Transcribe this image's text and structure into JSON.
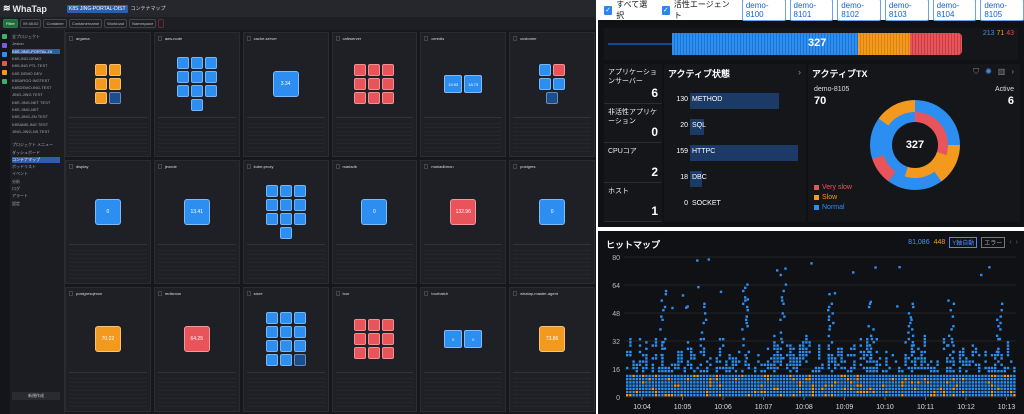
{
  "left": {
    "logo": "WhaTap",
    "project": "K8S JING-PORTAL-DIST",
    "page": "コンテナマップ",
    "toolbar": [
      "Filter",
      "09:48:02",
      "Container",
      "Containername",
      "Workload",
      "Namespace"
    ],
    "side_items": [
      "全プロジェクト",
      "Jeston",
      "K8S JING-PORTAL-DI",
      "K8S-ING-DEMO",
      "K8S-ING PTL TEST",
      "K8S DEMO DEV",
      "K8SARGO INGTEST",
      "K8SDEMO-ING-TEST",
      "JING-JING TEST",
      "K8S JING-NET TEST",
      "K8S JING-NET",
      "K8S-JING-ZN TEST",
      "K8SAMD-ING TEST",
      "JING-JING-NS TEST",
      "プロジェクト メニュー",
      "ダッシュボード",
      "コンテナマップ",
      "ポッドリスト",
      "イベント",
      "分析",
      "ログ",
      "アラート",
      "設定"
    ],
    "side_bottom": "新規作成",
    "cards": [
      {
        "name": "argama",
        "kind": "mixed"
      },
      {
        "name": "aws-node",
        "kind": "blues"
      },
      {
        "name": "cache-server",
        "kind": "single",
        "value": "3.34"
      },
      {
        "name": "cafeserver",
        "kind": "reds"
      },
      {
        "name": "ceredis",
        "kind": "pair",
        "values": [
          "19.93",
          "18.73"
        ]
      },
      {
        "name": "customer",
        "kind": "mixblue"
      },
      {
        "name": "display",
        "kind": "single",
        "value": "0"
      },
      {
        "name": "jeonde",
        "kind": "single",
        "value": "13.41"
      },
      {
        "name": "kube-proxy",
        "kind": "blues"
      },
      {
        "name": "mariadb",
        "kind": "single",
        "value": "0"
      },
      {
        "name": "mariadbmon",
        "kind": "singlered",
        "value": "132.96"
      },
      {
        "name": "postgres",
        "kind": "single",
        "value": "0"
      },
      {
        "name": "postgresqlmon",
        "kind": "singleorange",
        "value": "70.22"
      },
      {
        "name": "redismon",
        "kind": "singlered",
        "value": "64.25"
      },
      {
        "name": "store",
        "kind": "blues2"
      },
      {
        "name": "tour",
        "kind": "reds"
      },
      {
        "name": "tourbatch",
        "kind": "pair",
        "values": [
          "0",
          "0"
        ]
      },
      {
        "name": "whatap-master-agent",
        "kind": "singleorange",
        "value": "73.86"
      }
    ]
  },
  "agents": {
    "select_all": "すべて選択",
    "active_agent": "活性エージェント",
    "tabs": [
      "demo-8100",
      "demo-8101",
      "demo-8102",
      "demo-8103",
      "demo-8104",
      "demo-8105"
    ],
    "bar_total": "327",
    "right_blue": "213",
    "right_orange": "71",
    "right_red": "43"
  },
  "tiles": [
    {
      "label": "アプリケーションサーバー",
      "value": "6"
    },
    {
      "label": "非活性アプリケーション",
      "value": "0"
    },
    {
      "label": "CPUコア",
      "value": "2"
    },
    {
      "label": "ホスト",
      "value": "1"
    }
  ],
  "active_status": {
    "title": "アクティブ状態",
    "rows": [
      {
        "num": "130",
        "label": "METHOD",
        "pct": 0.82
      },
      {
        "num": "20",
        "label": "SQL",
        "pct": 0.13
      },
      {
        "num": "159",
        "label": "HTTPC",
        "pct": 1.0
      },
      {
        "num": "18",
        "label": "DBC",
        "pct": 0.11
      },
      {
        "num": "0",
        "label": "SOCKET",
        "pct": 0
      }
    ]
  },
  "active_tx": {
    "title": "アクティブTX",
    "agent": "demo-8105",
    "agent_value": "70",
    "active_label": "Active",
    "active_value": "6",
    "total": "327",
    "legend": [
      {
        "label": "Very slow",
        "color": "#e9545b"
      },
      {
        "label": "Slow",
        "color": "#f39a1e"
      },
      {
        "label": "Normal",
        "color": "#2b8ef0"
      }
    ]
  },
  "heatmap": {
    "title": "ヒットマップ",
    "count_blue": "81,086",
    "count_orange": "448",
    "btn_filter": "Y軸自動",
    "btn_error": "エラー",
    "y_ticks": [
      "80",
      "64",
      "48",
      "32",
      "16",
      "0"
    ],
    "x_ticks": [
      "10:04",
      "10:05",
      "10:06",
      "10:07",
      "10:08",
      "10:09",
      "10:10",
      "10:11",
      "10:12",
      "10:13"
    ]
  }
}
